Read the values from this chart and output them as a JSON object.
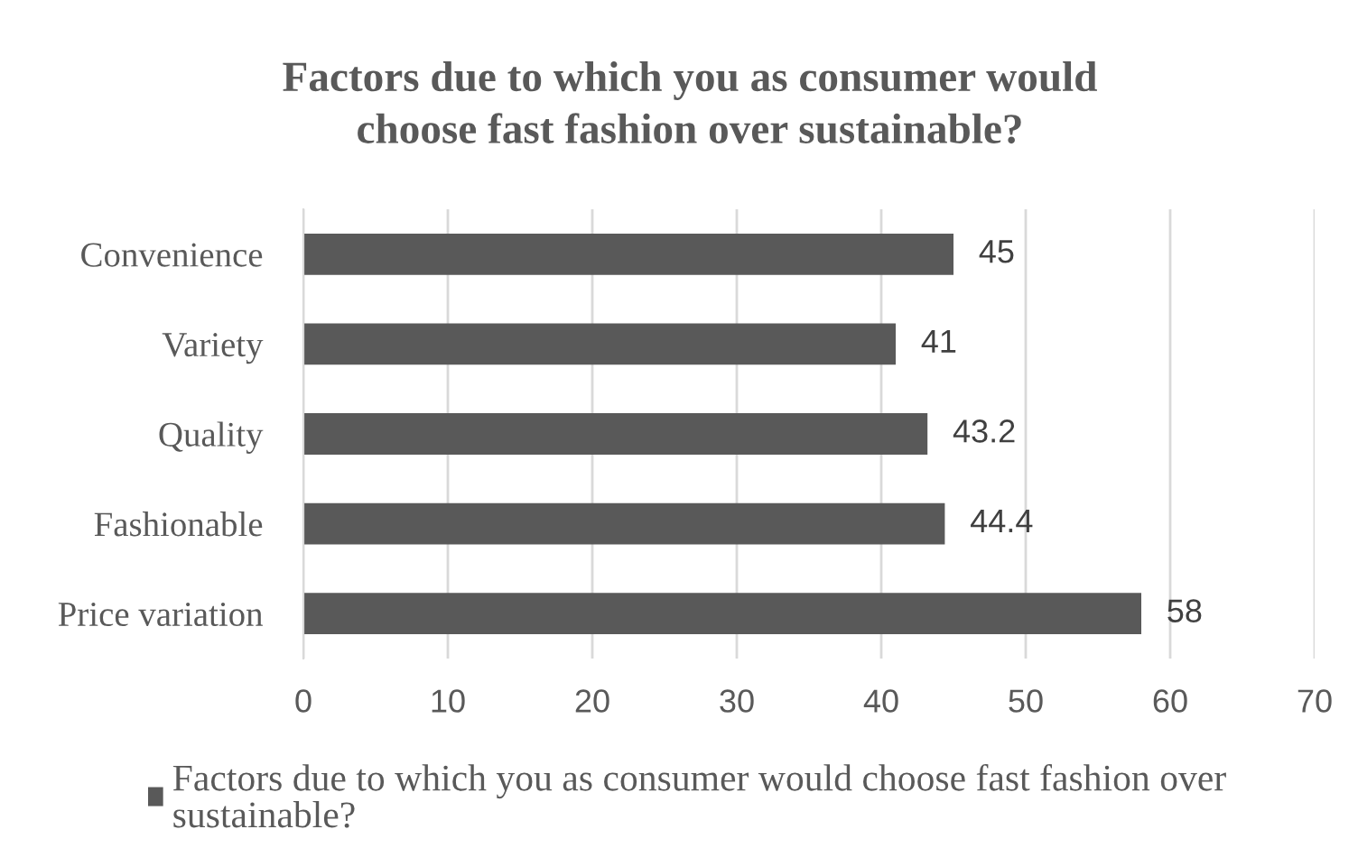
{
  "chart_data": {
    "type": "bar",
    "orientation": "horizontal",
    "title": "Factors due to which you as consumer would choose fast fashion over sustainable?",
    "categories": [
      "Convenience",
      "Variety",
      "Quality",
      "Fashionable",
      "Price variation"
    ],
    "series": [
      {
        "name": "Factors due to which you as consumer would choose fast fashion over sustainable?",
        "color": "#595959",
        "values": [
          45,
          41,
          43.2,
          44.4,
          58
        ]
      }
    ],
    "xlim": [
      0,
      70
    ],
    "xticks": [
      0,
      10,
      20,
      30,
      40,
      50,
      60,
      70
    ],
    "grid": "x",
    "legend": "bottom",
    "data_labels": true
  }
}
